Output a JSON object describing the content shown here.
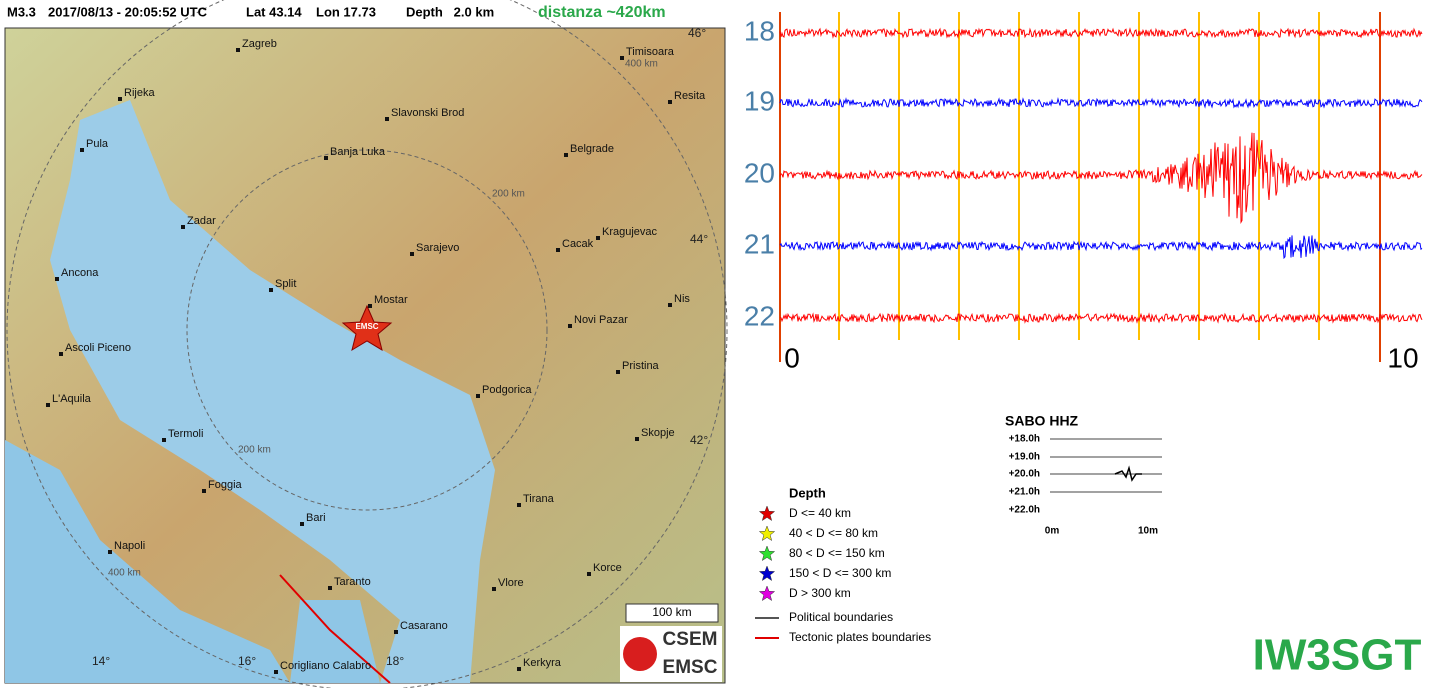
{
  "header": {
    "magnitude": "M3.3",
    "datetime": "2017/08/13 - 20:05:52 UTC",
    "lat": "Lat 43.14",
    "lon": "Lon 17.73",
    "depth": "Depth   2.0 km",
    "distance": "distanza ~420km"
  },
  "map": {
    "cities": [
      "Zagreb",
      "Timisoara",
      "Rijeka",
      "Resita",
      "Slavonski Brod",
      "Pula",
      "Banja Luka",
      "Belgrade",
      "Zadar",
      "Sarajevo",
      "Cacak",
      "Kragujevac",
      "Ancona",
      "Split",
      "Nis",
      "Mostar",
      "Novi Pazar",
      "Ascoli Piceno",
      "Pristina",
      "Podgorica",
      "L'Aquila",
      "Termoli",
      "Skopje",
      "Foggia",
      "Tirana",
      "Bari",
      "Napoli",
      "Korce",
      "Taranto",
      "Vlore",
      "Casarano",
      "Corigliano Calabro",
      "Kerkyra"
    ],
    "graticule": [
      "46°",
      "44°",
      "42°",
      "14°",
      "16°",
      "18°"
    ],
    "ring_labels": [
      "400 km",
      "200 km",
      "200 km",
      "400 km"
    ],
    "epicenter_label": "EMSC",
    "scale": "100 km",
    "logo": [
      "CSEM",
      "EMSC"
    ]
  },
  "legend": {
    "title": "Depth",
    "items": [
      {
        "label": "D <= 40 km",
        "color": "#e00000"
      },
      {
        "label": "40 < D <= 80 km",
        "color": "#f0f000"
      },
      {
        "label": "80 < D <= 150 km",
        "color": "#30e030"
      },
      {
        "label": "150 < D <= 300 km",
        "color": "#0000d0"
      },
      {
        "label": "D > 300 km",
        "color": "#e000e0"
      }
    ],
    "lines": [
      {
        "label": "Political boundaries",
        "color": "#555555"
      },
      {
        "label": "Tectonic plates boundaries",
        "color": "#e00000"
      }
    ]
  },
  "seismogram": {
    "hours": [
      "18",
      "19",
      "20",
      "21",
      "22"
    ],
    "colors": [
      "#ff0000",
      "#0000ff",
      "#ff0000",
      "#0000ff",
      "#ff0000"
    ],
    "x_labels": [
      "0",
      "10"
    ]
  },
  "helicorder": {
    "title": "SABO HHZ",
    "rows": [
      "+18.0h",
      "+19.0h",
      "+20.0h",
      "+21.0h",
      "+22.0h"
    ],
    "x_labels": [
      "0m",
      "10m"
    ]
  },
  "callsign": "IW3SGT"
}
